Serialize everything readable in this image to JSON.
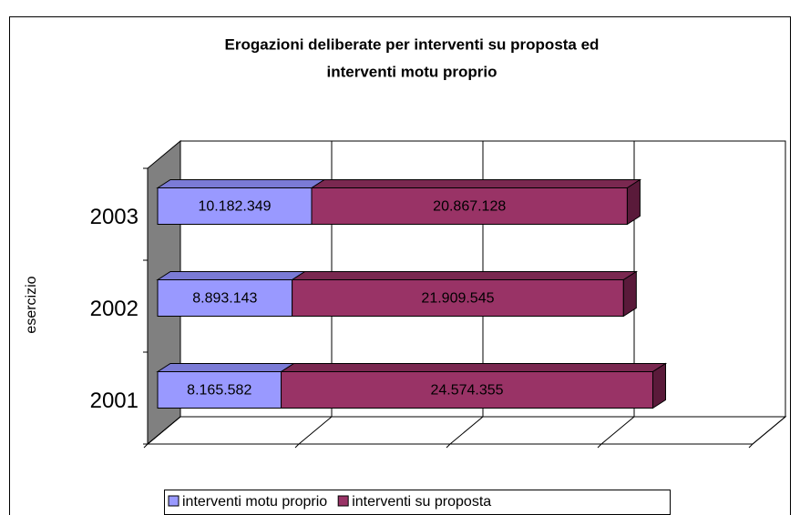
{
  "chart_data": {
    "type": "bar3d_stacked_horizontal",
    "title": [
      "Erogazioni deliberate per interventi su proposta ed",
      "interventi  motu proprio"
    ],
    "y_axis_label": "esercizio",
    "categories": [
      "2001",
      "2002",
      "2003"
    ],
    "series": [
      {
        "name": "interventi motu proprio",
        "color": "#9999ff",
        "top_color": "#7b7bd6",
        "values": [
          8165582,
          8893143,
          10182349
        ],
        "value_labels": [
          "8.165.582",
          "8.893.143",
          "10.182.349"
        ]
      },
      {
        "name": "interventi su proposta",
        "color": "#993366",
        "top_color": "#7a2850",
        "side_color": "#5a1a3a",
        "values": [
          24574355,
          21909545,
          20867128
        ],
        "value_labels": [
          "24.574.355",
          "21.909.545",
          "20.867.128"
        ]
      }
    ],
    "xlim": [
      0,
      40000000
    ],
    "xticks": [
      0,
      10000000,
      20000000,
      30000000,
      40000000
    ],
    "grid": true,
    "legend": "bottom"
  }
}
